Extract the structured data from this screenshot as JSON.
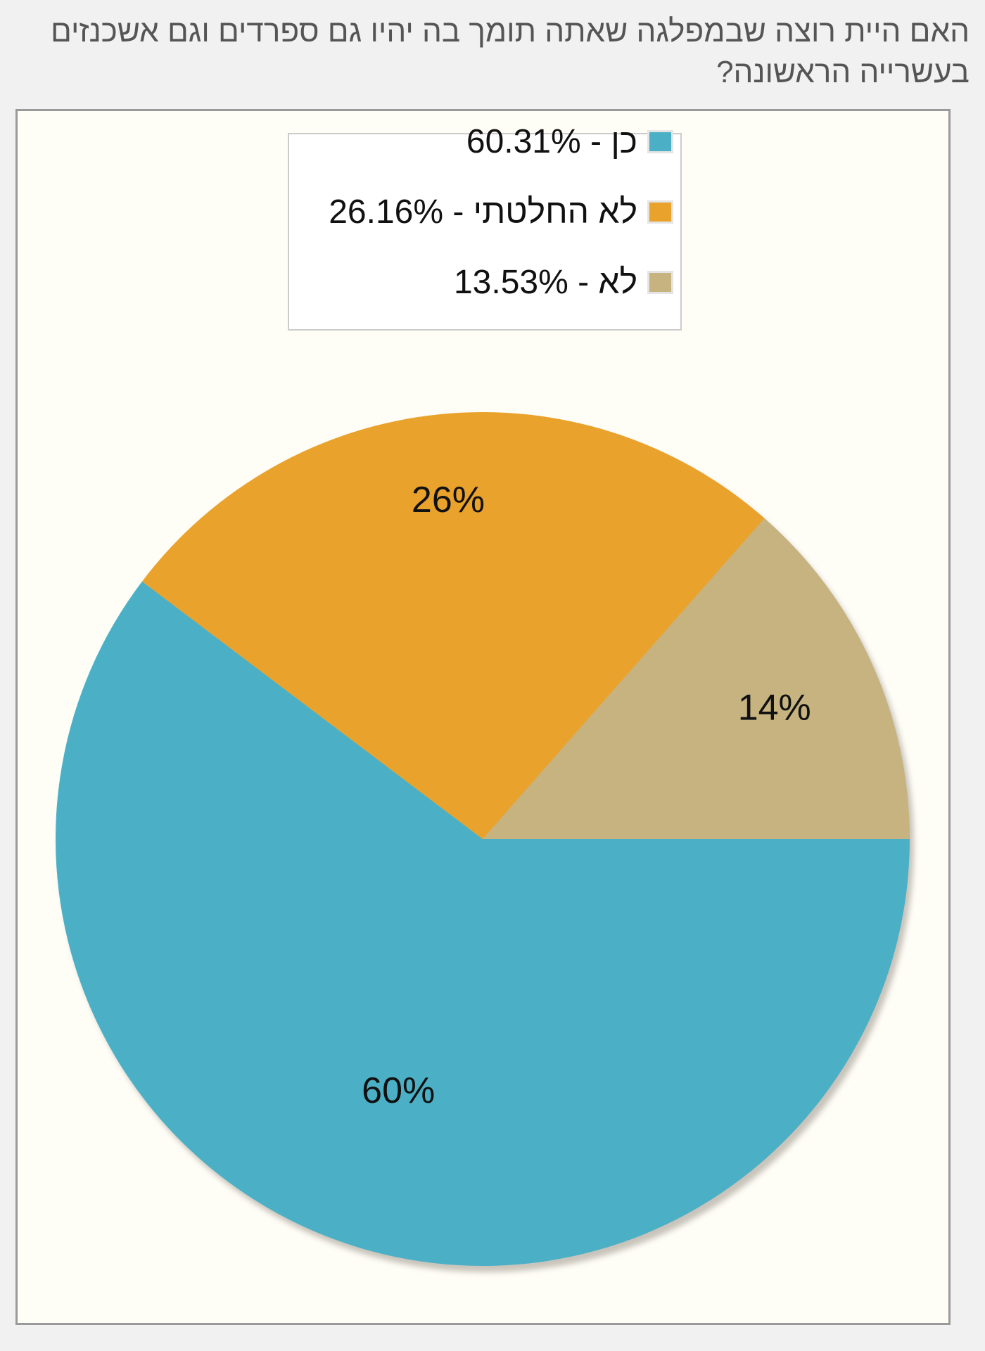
{
  "question": {
    "line1": "האם היית רוצה שבמפלגה שאתה תומך בה יהיו גם ספרדים וגם אשכנזים",
    "line2": "בעשרייה הראשונה?"
  },
  "colors": {
    "yes": "#4bb0c6",
    "undecided": "#e9a22b",
    "no": "#c6b37f",
    "background": "#fefdf6"
  },
  "legend": {
    "items": [
      {
        "label": "כן - 60.31%",
        "color": "#4bb0c6"
      },
      {
        "label": "לא החלטתי - 26.16%",
        "color": "#e9a22b"
      },
      {
        "label": "לא - 13.53%",
        "color": "#c6b37f"
      }
    ]
  },
  "chart_data": {
    "type": "pie",
    "title": "האם היית רוצה שבמפלגה שאתה תומך בה יהיו גם ספרדים וגם אשכנזים בעשרייה הראשונה?",
    "legend_position": "top",
    "categories": [
      "כן",
      "לא החלטתי",
      "לא"
    ],
    "values": [
      60.31,
      26.16,
      13.53
    ],
    "data_labels": [
      "60%",
      "26%",
      "14%"
    ],
    "colors": [
      "#4bb0c6",
      "#e9a22b",
      "#c6b37f"
    ]
  }
}
